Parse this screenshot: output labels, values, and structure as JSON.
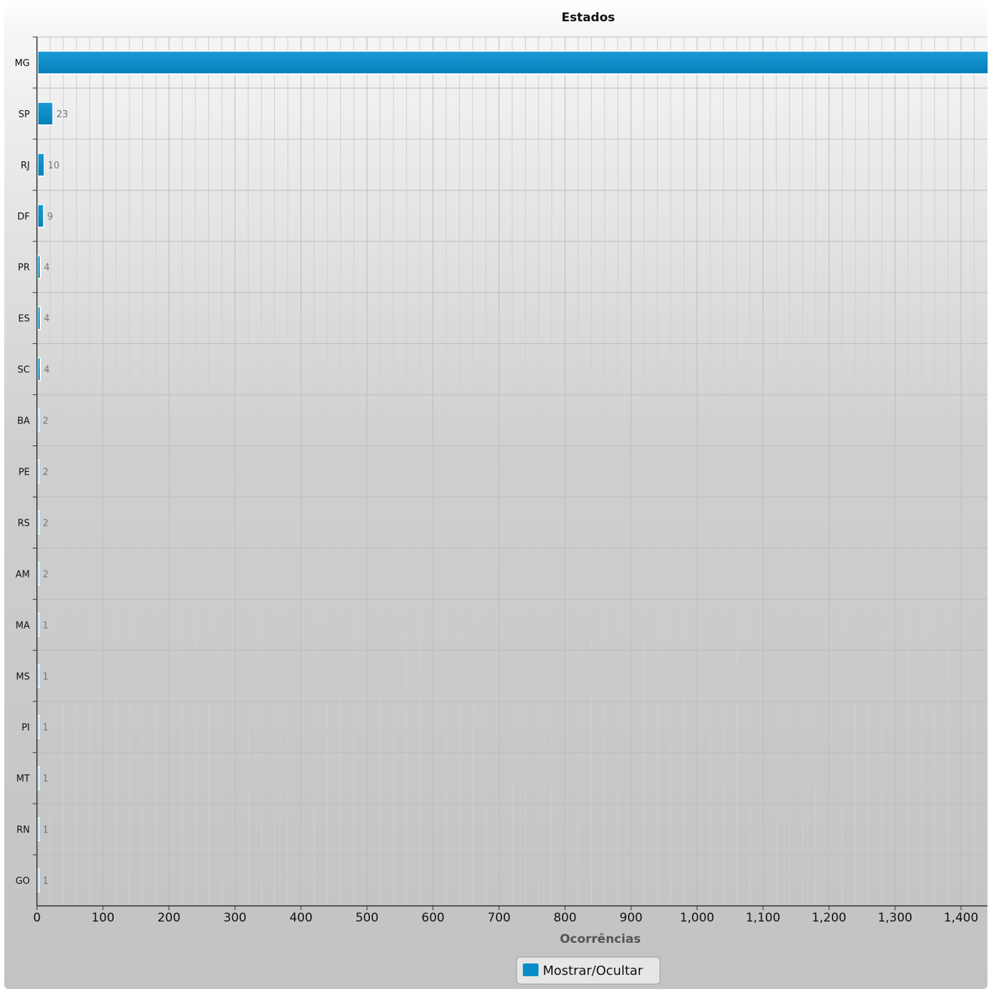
{
  "chart_data": {
    "type": "bar",
    "orientation": "horizontal",
    "title": "Estados",
    "xlabel": "Ocorrências",
    "ylabel": "",
    "categories": [
      "MG",
      "SP",
      "RJ",
      "DF",
      "PR",
      "ES",
      "SC",
      "BA",
      "PE",
      "RS",
      "AM",
      "MA",
      "MS",
      "PI",
      "MT",
      "RN",
      "GO"
    ],
    "series": [
      {
        "name": "Mostrar/Ocultar",
        "values": [
          1440,
          23,
          10,
          9,
          4,
          4,
          4,
          2,
          2,
          2,
          2,
          1,
          1,
          1,
          1,
          1,
          1
        ],
        "data_labels": [
          "",
          "23",
          "10",
          "9",
          "4",
          "4",
          "4",
          "2",
          "2",
          "2",
          "2",
          "1",
          "1",
          "1",
          "1",
          "1",
          "1"
        ]
      }
    ],
    "xlim": [
      0,
      1440
    ],
    "x_ticks": [
      0,
      100,
      200,
      300,
      400,
      500,
      600,
      700,
      800,
      900,
      1000,
      1100,
      1200,
      1300,
      1400
    ],
    "x_tick_labels": [
      "0",
      "100",
      "200",
      "300",
      "400",
      "500",
      "600",
      "700",
      "800",
      "900",
      "1,000",
      "1,100",
      "1,200",
      "1,300",
      "1,400"
    ],
    "grid": true,
    "legend_position": "bottom-center",
    "colors": {
      "bar": "#078dc9",
      "bar_edge": "#0a6f9e",
      "background_top": "#f8f8f8",
      "background_bottom": "#c4c4c4",
      "grid_major": "#bdbdbd",
      "grid_minor": "#d0d0d0",
      "axis": "#333333"
    }
  },
  "legend": {
    "label": "Mostrar/Ocultar"
  }
}
